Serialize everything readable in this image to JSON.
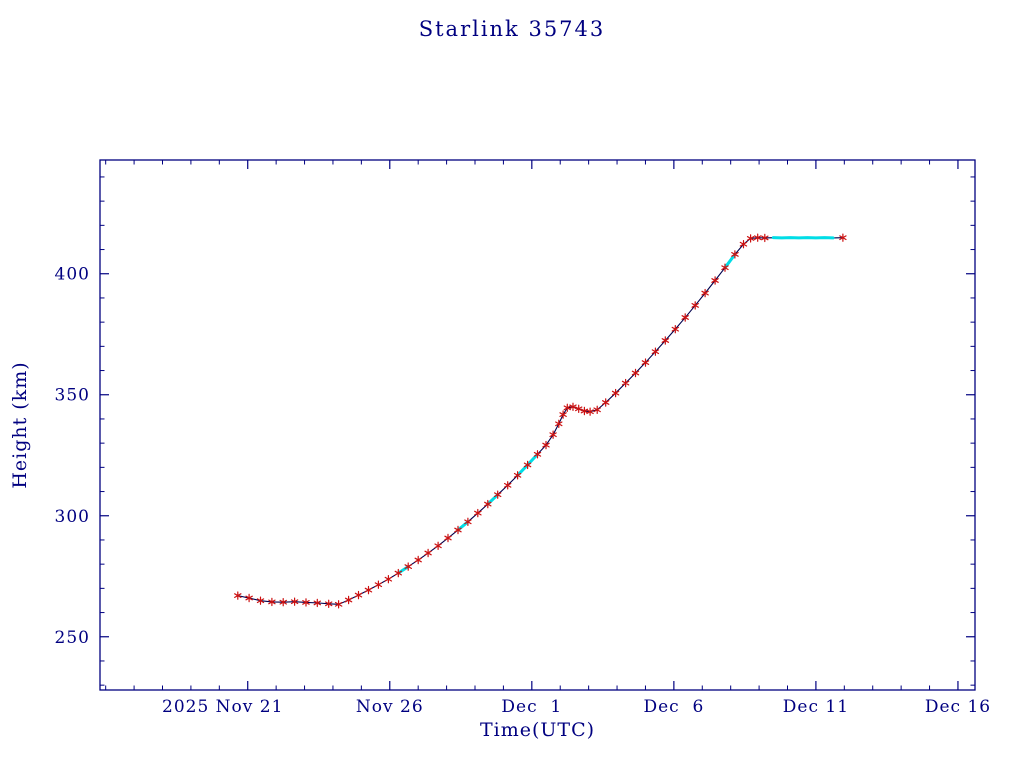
{
  "title": "Starlink 35743",
  "colors": {
    "background": "#ffffff",
    "axis": "#000080",
    "text": "#000080",
    "line": "#00004d",
    "marker": "#cc1111",
    "highlight": "#00dde6"
  },
  "chart_data": {
    "type": "line",
    "title": "Starlink 35743",
    "xlabel": "Time(UTC)",
    "ylabel": "Height (km)",
    "x_unit": "days since 2025-11-21 00:00 UTC",
    "xlim": [
      -5.2,
      25.6
    ],
    "ylim": [
      228,
      447
    ],
    "grid": false,
    "legend": false,
    "x_ticks": [
      {
        "t": 0,
        "label": "2025 Nov 21",
        "dx": -25
      },
      {
        "t": 5,
        "label": "Nov 26",
        "dx": 0
      },
      {
        "t": 10,
        "label": "Dec  1",
        "dx": 0
      },
      {
        "t": 15,
        "label": "Dec  6",
        "dx": 0
      },
      {
        "t": 20,
        "label": "Dec 11",
        "dx": 0
      },
      {
        "t": 25,
        "label": "Dec 16",
        "dx": 0
      }
    ],
    "y_ticks": [
      {
        "v": 250,
        "label": "250"
      },
      {
        "v": 300,
        "label": "300"
      },
      {
        "v": 350,
        "label": "350"
      },
      {
        "v": 400,
        "label": "400"
      }
    ],
    "x_minor_step": 1,
    "y_minor_step": 10,
    "series": [
      {
        "name": "orbital-height",
        "marker": "asterisk",
        "points": [
          [
            -0.35,
            267.0
          ],
          [
            0.05,
            266.0
          ],
          [
            0.45,
            264.9
          ],
          [
            0.85,
            264.4
          ],
          [
            1.25,
            264.3
          ],
          [
            1.65,
            264.5
          ],
          [
            2.05,
            264.2
          ],
          [
            2.45,
            264.0
          ],
          [
            2.85,
            263.6
          ],
          [
            3.2,
            263.4
          ],
          [
            3.55,
            265.2
          ],
          [
            3.9,
            267.2
          ],
          [
            4.25,
            269.3
          ],
          [
            4.6,
            271.5
          ],
          [
            4.95,
            273.8
          ],
          [
            5.3,
            276.3
          ],
          [
            5.65,
            279.0
          ],
          [
            6.0,
            281.7
          ],
          [
            6.35,
            284.6
          ],
          [
            6.7,
            287.6
          ],
          [
            7.05,
            290.8
          ],
          [
            7.4,
            294.1
          ],
          [
            7.75,
            297.5
          ],
          [
            8.1,
            301.1
          ],
          [
            8.45,
            304.8
          ],
          [
            8.8,
            308.7
          ],
          [
            9.15,
            312.6
          ],
          [
            9.5,
            316.7
          ],
          [
            9.85,
            321.0
          ],
          [
            10.2,
            325.4
          ],
          [
            10.5,
            329.2
          ],
          [
            10.75,
            333.5
          ],
          [
            10.95,
            338.0
          ],
          [
            11.1,
            341.8
          ],
          [
            11.25,
            344.6
          ],
          [
            11.45,
            345.0
          ],
          [
            11.65,
            344.2
          ],
          [
            11.85,
            343.3
          ],
          [
            12.05,
            343.0
          ],
          [
            12.3,
            343.8
          ],
          [
            12.6,
            346.8
          ],
          [
            12.95,
            350.7
          ],
          [
            13.3,
            354.8
          ],
          [
            13.65,
            359.0
          ],
          [
            14.0,
            363.3
          ],
          [
            14.35,
            367.8
          ],
          [
            14.7,
            372.4
          ],
          [
            15.05,
            377.1
          ],
          [
            15.4,
            381.9
          ],
          [
            15.75,
            386.9
          ],
          [
            16.1,
            392.0
          ],
          [
            16.45,
            397.2
          ],
          [
            16.8,
            402.5
          ],
          [
            17.15,
            408.0
          ],
          [
            17.45,
            412.2
          ],
          [
            17.7,
            414.6
          ],
          [
            17.95,
            414.9
          ],
          [
            18.2,
            414.8
          ],
          [
            18.5,
            414.9
          ],
          [
            18.8,
            414.8
          ],
          [
            19.1,
            414.9
          ],
          [
            19.4,
            414.8
          ],
          [
            19.7,
            414.9
          ],
          [
            20.0,
            414.8
          ],
          [
            20.3,
            414.9
          ],
          [
            20.6,
            414.8
          ],
          [
            20.95,
            414.9
          ]
        ]
      }
    ],
    "highlight_segments": [
      [
        5.1,
        5.7
      ],
      [
        7.3,
        7.9
      ],
      [
        8.4,
        9.0
      ],
      [
        9.3,
        10.4
      ],
      [
        16.7,
        17.3
      ],
      [
        18.3,
        20.8
      ]
    ],
    "no_marker_ranges": [
      [
        18.3,
        20.82
      ]
    ]
  }
}
